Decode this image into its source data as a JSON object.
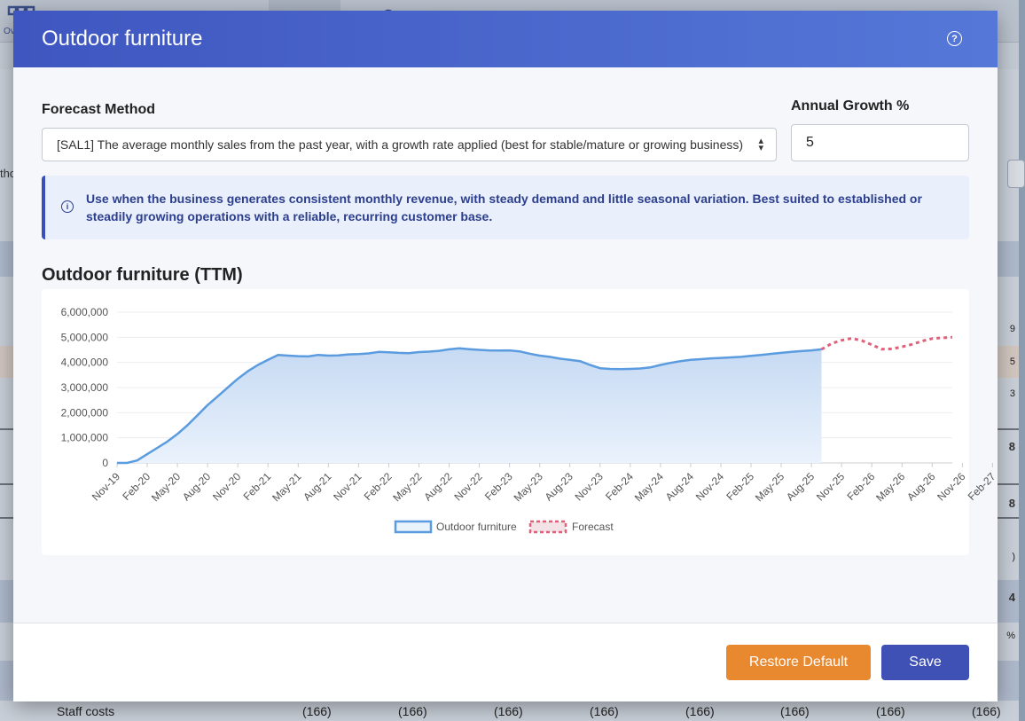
{
  "background": {
    "nav_label": "Ove",
    "row_label": "Staff costs",
    "row_values": [
      "(166)",
      "(166)",
      "(166)",
      "(166)",
      "(166)",
      "(166)",
      "(166)",
      "(166)"
    ],
    "side_fragments": {
      "ctho": "tho",
      "r9": "9",
      "r5": "5",
      "r3": "3",
      "r8a": "8",
      "r8b": "8",
      "rparen": ")",
      "r4": "4",
      "rpct": "%"
    }
  },
  "modal": {
    "title": "Outdoor furniture",
    "help_icon": "help-circle-icon",
    "forecast_method_label": "Forecast Method",
    "forecast_method_value": "[SAL1] The average monthly sales from the past year, with a growth rate applied (best for stable/mature or growing business)",
    "annual_growth_label": "Annual Growth %",
    "annual_growth_value": "5",
    "info_text": "Use when the business generates consistent monthly revenue, with steady demand and little seasonal variation. Best suited to established or steadily growing operations with a reliable, recurring customer base.",
    "chart_title": "Outdoor furniture (TTM)",
    "restore_label": "Restore Default",
    "save_label": "Save"
  },
  "chart_data": {
    "type": "line",
    "ylim": [
      0,
      6000000
    ],
    "y_ticks": [
      "0",
      "1,000,000",
      "2,000,000",
      "3,000,000",
      "4,000,000",
      "5,000,000",
      "6,000,000"
    ],
    "x_ticks": [
      "Nov-19",
      "Feb-20",
      "May-20",
      "Aug-20",
      "Nov-20",
      "Feb-21",
      "May-21",
      "Aug-21",
      "Nov-21",
      "Feb-22",
      "May-22",
      "Aug-22",
      "Nov-22",
      "Feb-23",
      "May-23",
      "Aug-23",
      "Nov-23",
      "Feb-24",
      "May-24",
      "Aug-24",
      "Nov-24",
      "Feb-25",
      "May-25",
      "Aug-25",
      "Nov-25",
      "Feb-26",
      "May-26",
      "Aug-26",
      "Nov-26",
      "Feb-27"
    ],
    "series": [
      {
        "name": "Outdoor furniture",
        "color": "#5b9bdf",
        "fill": "area",
        "points": [
          [
            0,
            0
          ],
          [
            1,
            0
          ],
          [
            2,
            100000
          ],
          [
            3,
            350000
          ],
          [
            4,
            600000
          ],
          [
            5,
            850000
          ],
          [
            6,
            1150000
          ],
          [
            7,
            1500000
          ],
          [
            8,
            1900000
          ],
          [
            9,
            2300000
          ],
          [
            10,
            2650000
          ],
          [
            11,
            3000000
          ],
          [
            12,
            3350000
          ],
          [
            13,
            3650000
          ],
          [
            14,
            3900000
          ],
          [
            15,
            4100000
          ],
          [
            16,
            4300000
          ],
          [
            17,
            4270000
          ],
          [
            18,
            4250000
          ],
          [
            19,
            4240000
          ],
          [
            20,
            4300000
          ],
          [
            21,
            4270000
          ],
          [
            22,
            4280000
          ],
          [
            23,
            4320000
          ],
          [
            24,
            4330000
          ],
          [
            25,
            4360000
          ],
          [
            26,
            4420000
          ],
          [
            27,
            4400000
          ],
          [
            28,
            4380000
          ],
          [
            29,
            4370000
          ],
          [
            30,
            4410000
          ],
          [
            31,
            4430000
          ],
          [
            32,
            4460000
          ],
          [
            33,
            4520000
          ],
          [
            34,
            4560000
          ],
          [
            35,
            4530000
          ],
          [
            36,
            4500000
          ],
          [
            37,
            4480000
          ],
          [
            38,
            4470000
          ],
          [
            39,
            4480000
          ],
          [
            40,
            4440000
          ],
          [
            41,
            4350000
          ],
          [
            42,
            4270000
          ],
          [
            43,
            4220000
          ],
          [
            44,
            4150000
          ],
          [
            45,
            4100000
          ],
          [
            46,
            4050000
          ],
          [
            47,
            3900000
          ],
          [
            48,
            3770000
          ],
          [
            49,
            3740000
          ],
          [
            50,
            3730000
          ],
          [
            51,
            3740000
          ],
          [
            52,
            3760000
          ],
          [
            53,
            3800000
          ],
          [
            54,
            3900000
          ],
          [
            55,
            3980000
          ],
          [
            56,
            4050000
          ],
          [
            57,
            4100000
          ],
          [
            58,
            4130000
          ],
          [
            59,
            4160000
          ],
          [
            60,
            4180000
          ],
          [
            61,
            4200000
          ],
          [
            62,
            4220000
          ],
          [
            63,
            4260000
          ],
          [
            64,
            4300000
          ],
          [
            65,
            4340000
          ],
          [
            66,
            4380000
          ],
          [
            67,
            4420000
          ],
          [
            68,
            4450000
          ],
          [
            69,
            4480000
          ],
          [
            70,
            4520000
          ]
        ]
      },
      {
        "name": "Forecast",
        "color": "#e0607a",
        "dashed": true,
        "points": [
          [
            70,
            4520000
          ],
          [
            71,
            4750000
          ],
          [
            72,
            4880000
          ],
          [
            73,
            4960000
          ],
          [
            74,
            4870000
          ],
          [
            75,
            4700000
          ],
          [
            76,
            4530000
          ],
          [
            77,
            4540000
          ],
          [
            78,
            4620000
          ],
          [
            79,
            4720000
          ],
          [
            80,
            4850000
          ],
          [
            81,
            4950000
          ],
          [
            82,
            4980000
          ],
          [
            83,
            5000000
          ]
        ]
      }
    ],
    "x_count": 84,
    "legend": "bottom"
  }
}
